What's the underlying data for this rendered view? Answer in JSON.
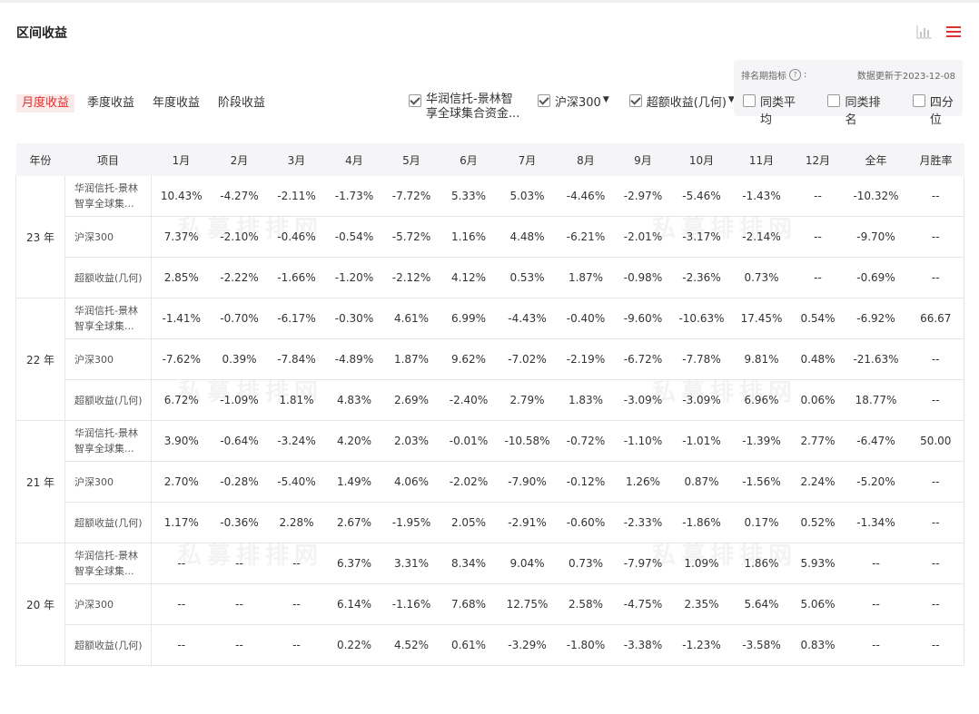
{
  "section_title": "区间收益",
  "view_icons": [
    "bar-chart-icon",
    "list-icon"
  ],
  "accent_color": "#e0302f",
  "positive_color": "#e0302f",
  "negative_color": "#1f9f45",
  "tabs": [
    {
      "label": "月度收益",
      "active": true
    },
    {
      "label": "季度收益",
      "active": false
    },
    {
      "label": "年度收益",
      "active": false
    },
    {
      "label": "阶段收益",
      "active": false
    }
  ],
  "legend": {
    "fund": {
      "label_line1": "华润信托-景林智",
      "label_line2": "享全球集合资金...",
      "checked": true
    },
    "index": {
      "label": "沪深300",
      "checked": true
    },
    "excess": {
      "label": "超额收益(几何)",
      "checked": true
    }
  },
  "rank_panel": {
    "label": "排名期指标",
    "label_suffix": ":",
    "date_text": "数据更新于2023-12-08",
    "options": [
      {
        "label": "同类平均",
        "checked": false
      },
      {
        "label": "同类排名",
        "checked": false
      },
      {
        "label": "四分位",
        "checked": false
      }
    ]
  },
  "watermark": "私募排排网",
  "table": {
    "headers": [
      "年份",
      "项目",
      "1月",
      "2月",
      "3月",
      "4月",
      "5月",
      "6月",
      "7月",
      "8月",
      "9月",
      "10月",
      "11月",
      "12月",
      "全年",
      "月胜率"
    ],
    "years": [
      {
        "year": "23 年",
        "rows": [
          {
            "item": "华润信托-景林智享全球集...",
            "cells": [
              "10.43%",
              "-4.27%",
              "-2.11%",
              "-1.73%",
              "-7.72%",
              "5.33%",
              "5.03%",
              "-4.46%",
              "-2.97%",
              "-5.46%",
              "-1.43%",
              "--",
              "-10.32%",
              "--"
            ]
          },
          {
            "item": "沪深300",
            "cells": [
              "7.37%",
              "-2.10%",
              "-0.46%",
              "-0.54%",
              "-5.72%",
              "1.16%",
              "4.48%",
              "-6.21%",
              "-2.01%",
              "-3.17%",
              "-2.14%",
              "--",
              "-9.70%",
              "--"
            ]
          },
          {
            "item": "超额收益(几何)",
            "cells": [
              "2.85%",
              "-2.22%",
              "-1.66%",
              "-1.20%",
              "-2.12%",
              "4.12%",
              "0.53%",
              "1.87%",
              "-0.98%",
              "-2.36%",
              "0.73%",
              "--",
              "-0.69%",
              "--"
            ]
          }
        ]
      },
      {
        "year": "22 年",
        "rows": [
          {
            "item": "华润信托-景林智享全球集...",
            "cells": [
              "-1.41%",
              "-0.70%",
              "-6.17%",
              "-0.30%",
              "4.61%",
              "6.99%",
              "-4.43%",
              "-0.40%",
              "-9.60%",
              "-10.63%",
              "17.45%",
              "0.54%",
              "-6.92%",
              "66.67"
            ]
          },
          {
            "item": "沪深300",
            "cells": [
              "-7.62%",
              "0.39%",
              "-7.84%",
              "-4.89%",
              "1.87%",
              "9.62%",
              "-7.02%",
              "-2.19%",
              "-6.72%",
              "-7.78%",
              "9.81%",
              "0.48%",
              "-21.63%",
              "--"
            ]
          },
          {
            "item": "超额收益(几何)",
            "cells": [
              "6.72%",
              "-1.09%",
              "1.81%",
              "4.83%",
              "2.69%",
              "-2.40%",
              "2.79%",
              "1.83%",
              "-3.09%",
              "-3.09%",
              "6.96%",
              "0.06%",
              "18.77%",
              "--"
            ]
          }
        ]
      },
      {
        "year": "21 年",
        "rows": [
          {
            "item": "华润信托-景林智享全球集...",
            "cells": [
              "3.90%",
              "-0.64%",
              "-3.24%",
              "4.20%",
              "2.03%",
              "-0.01%",
              "-10.58%",
              "-0.72%",
              "-1.10%",
              "-1.01%",
              "-1.39%",
              "2.77%",
              "-6.47%",
              "50.00"
            ]
          },
          {
            "item": "沪深300",
            "cells": [
              "2.70%",
              "-0.28%",
              "-5.40%",
              "1.49%",
              "4.06%",
              "-2.02%",
              "-7.90%",
              "-0.12%",
              "1.26%",
              "0.87%",
              "-1.56%",
              "2.24%",
              "-5.20%",
              "--"
            ]
          },
          {
            "item": "超额收益(几何)",
            "cells": [
              "1.17%",
              "-0.36%",
              "2.28%",
              "2.67%",
              "-1.95%",
              "2.05%",
              "-2.91%",
              "-0.60%",
              "-2.33%",
              "-1.86%",
              "0.17%",
              "0.52%",
              "-1.34%",
              "--"
            ]
          }
        ]
      },
      {
        "year": "20 年",
        "rows": [
          {
            "item": "华润信托-景林智享全球集...",
            "cells": [
              "--",
              "--",
              "--",
              "6.37%",
              "3.31%",
              "8.34%",
              "9.04%",
              "0.73%",
              "-7.97%",
              "1.09%",
              "1.86%",
              "5.93%",
              "--",
              "--"
            ]
          },
          {
            "item": "沪深300",
            "cells": [
              "--",
              "--",
              "--",
              "6.14%",
              "-1.16%",
              "7.68%",
              "12.75%",
              "2.58%",
              "-4.75%",
              "2.35%",
              "5.64%",
              "5.06%",
              "--",
              "--"
            ]
          },
          {
            "item": "超额收益(几何)",
            "cells": [
              "--",
              "--",
              "--",
              "0.22%",
              "4.52%",
              "0.61%",
              "-3.29%",
              "-1.80%",
              "-3.38%",
              "-1.23%",
              "-3.58%",
              "0.83%",
              "--",
              "--"
            ]
          }
        ]
      }
    ]
  }
}
